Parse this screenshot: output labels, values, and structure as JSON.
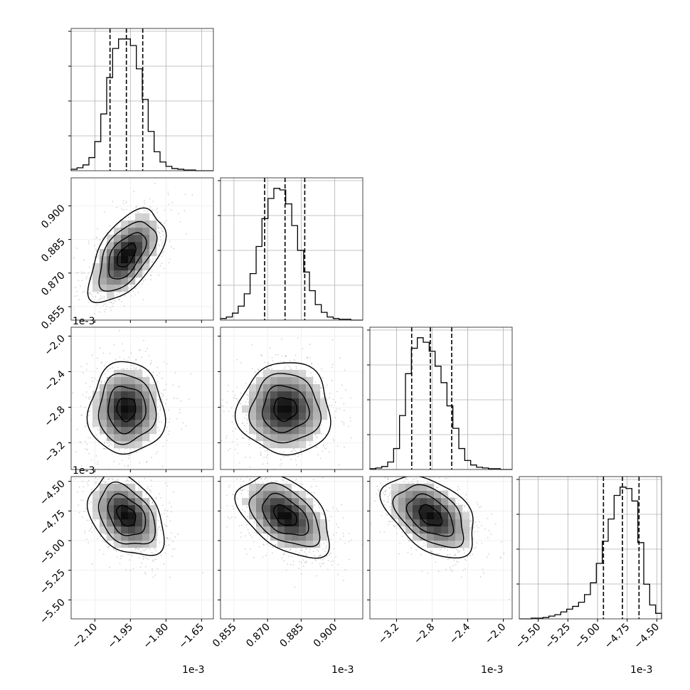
{
  "chart_data": {
    "type": "corner",
    "parameters": [
      {
        "offset_text": "1e-3",
        "range": [
          -2.2,
          -1.6
        ],
        "median": -1.967,
        "quantiles": [
          -2.036,
          -1.967,
          -1.898
        ],
        "ticks": [
          -2.1,
          -1.95,
          -1.8,
          -1.65
        ],
        "tick_labels": [
          "−2.10",
          "−1.95",
          "−1.80",
          "−1.65"
        ],
        "histogram": {
          "bin_edges": [
            -2.2,
            -2.175,
            -2.15,
            -2.125,
            -2.1,
            -2.075,
            -2.05,
            -2.025,
            -2.0,
            -1.975,
            -1.95,
            -1.925,
            -1.9,
            -1.875,
            -1.85,
            -1.825,
            -1.8,
            -1.775,
            -1.75,
            -1.725,
            -1.7,
            -1.675,
            -1.65,
            -1.625,
            -1.6
          ],
          "counts": [
            2,
            4,
            8,
            18,
            40,
            78,
            128,
            168,
            181,
            181,
            172,
            140,
            98,
            54,
            26,
            12,
            6,
            3,
            2,
            1,
            1,
            0,
            0,
            0
          ]
        }
      },
      {
        "offset_text": "1e-3",
        "range": [
          0.849,
          0.9125
        ],
        "median": 0.8778,
        "quantiles": [
          0.8687,
          0.8778,
          0.8866
        ],
        "ticks": [
          0.855,
          0.87,
          0.885,
          0.9
        ],
        "tick_labels": [
          "0.855",
          "0.870",
          "0.885",
          "0.900"
        ],
        "histogram": {
          "bin_edges": [
            0.849,
            0.8516,
            0.8543,
            0.8569,
            0.8596,
            0.8622,
            0.8649,
            0.8675,
            0.8702,
            0.8728,
            0.8755,
            0.8781,
            0.8808,
            0.8834,
            0.8861,
            0.8887,
            0.8913,
            0.894,
            0.8966,
            0.8993,
            0.9019,
            0.9046,
            0.9072,
            0.9099,
            0.9125
          ],
          "counts": [
            2,
            4,
            9,
            18,
            34,
            60,
            95,
            131,
            157,
            170,
            168,
            150,
            122,
            90,
            62,
            38,
            20,
            10,
            4,
            2,
            1,
            1,
            0,
            0
          ]
        }
      },
      {
        "offset_text": "1e-3",
        "range": [
          -3.5,
          -1.9
        ],
        "median": -2.82,
        "quantiles": [
          -3.03,
          -2.82,
          -2.58
        ],
        "ticks": [
          -3.2,
          -2.8,
          -2.4,
          -2.0
        ],
        "tick_labels": [
          "−3.2",
          "−2.8",
          "−2.4",
          "−2.0"
        ],
        "histogram": {
          "bin_edges": [
            -3.5,
            -3.4333,
            -3.3667,
            -3.3,
            -3.2333,
            -3.1667,
            -3.1,
            -3.0333,
            -2.9667,
            -2.9,
            -2.8333,
            -2.7667,
            -2.7,
            -2.6333,
            -2.5667,
            -2.5,
            -2.4333,
            -2.3667,
            -2.3,
            -2.2333,
            -2.1667,
            -2.1,
            -2.0333,
            -1.9667,
            -1.9
          ],
          "counts": [
            1,
            2,
            4,
            10,
            28,
            72,
            128,
            162,
            176,
            170,
            158,
            138,
            116,
            85,
            55,
            28,
            12,
            6,
            3,
            2,
            1,
            1,
            0,
            0
          ]
        }
      },
      {
        "offset_text": "1e-3",
        "range": [
          -5.66,
          -4.46
        ],
        "median": -4.79,
        "quantiles": [
          -4.95,
          -4.79,
          -4.65
        ],
        "ticks": [
          -5.5,
          -5.25,
          -5.0,
          -4.75,
          -4.5
        ],
        "tick_labels": [
          "−5.50",
          "−5.25",
          "−5.00",
          "−4.75",
          "−4.50"
        ],
        "histogram": {
          "bin_edges": [
            -5.66,
            -5.61,
            -5.56,
            -5.51,
            -5.46,
            -5.41,
            -5.36,
            -5.31,
            -5.26,
            -5.21,
            -5.16,
            -5.11,
            -5.06,
            -5.01,
            -4.96,
            -4.91,
            -4.86,
            -4.81,
            -4.76,
            -4.71,
            -4.66,
            -4.61,
            -4.56,
            -4.51,
            -4.46
          ],
          "counts": [
            0,
            0,
            1,
            1,
            2,
            4,
            6,
            10,
            14,
            18,
            24,
            35,
            52,
            80,
            112,
            144,
            178,
            190,
            188,
            170,
            110,
            50,
            20,
            8
          ]
        }
      }
    ],
    "correlations": [
      {
        "x": 0,
        "y": 1,
        "rho": 0.55
      },
      {
        "x": 0,
        "y": 2,
        "rho": 0.0
      },
      {
        "x": 1,
        "y": 2,
        "rho": 0.0
      },
      {
        "x": 0,
        "y": 3,
        "rho": -0.35
      },
      {
        "x": 1,
        "y": 3,
        "rho": -0.45
      },
      {
        "x": 2,
        "y": 3,
        "rho": -0.45
      }
    ],
    "contour_levels_sigma": [
      0.5,
      1.0,
      1.5,
      2.0
    ],
    "grid": true,
    "colors": {
      "line": "#000000",
      "scatter": "#808080",
      "grid": "#b0b0b0"
    }
  }
}
